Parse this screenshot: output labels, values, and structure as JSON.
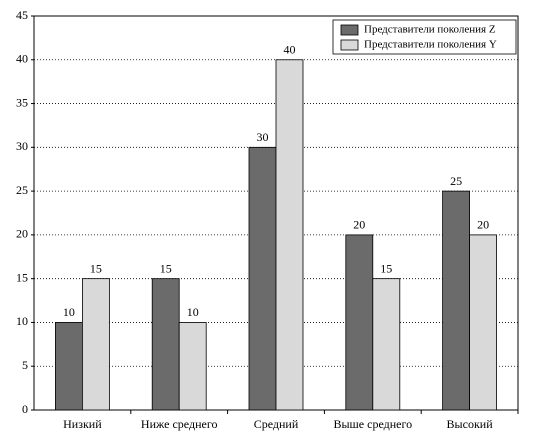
{
  "chart_data": {
    "type": "bar",
    "categories": [
      "Низкий",
      "Ниже среднего",
      "Средний",
      "Выше среднего",
      "Высокий"
    ],
    "series": [
      {
        "name": "Представители поколения Z",
        "color": "#6b6b6b",
        "values": [
          10,
          15,
          30,
          20,
          25
        ]
      },
      {
        "name": "Представители поколения Y",
        "color": "#d9d9d9",
        "values": [
          15,
          10,
          40,
          15,
          20
        ]
      }
    ],
    "ylim": [
      0,
      45
    ],
    "yticks": [
      0,
      5,
      10,
      15,
      20,
      25,
      30,
      35,
      40,
      45
    ],
    "grid": true,
    "legend": "top-right"
  }
}
